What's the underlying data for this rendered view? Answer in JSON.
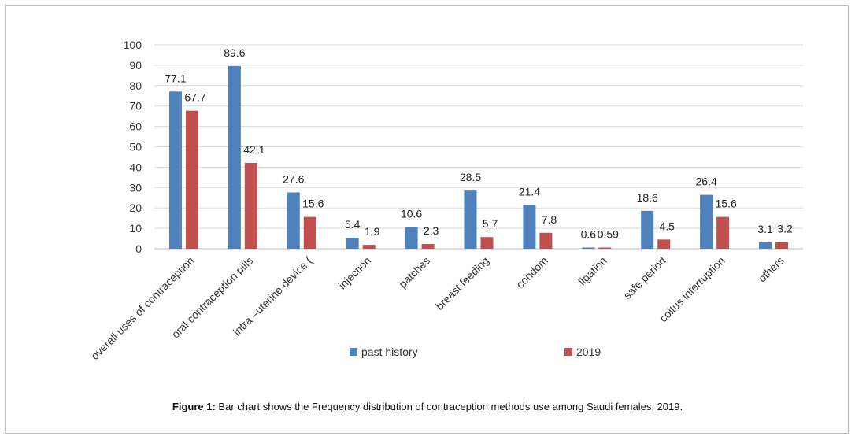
{
  "chart_data": {
    "type": "bar",
    "categories": [
      "overall uses of contraception",
      "oral contraception pills",
      "intra –uterine device (",
      "injection",
      "patches",
      "breast feeding",
      "condom",
      "ligation",
      "safe period",
      "coitus interruption",
      "others"
    ],
    "series": [
      {
        "name": "past history",
        "color": "#4f81bd",
        "values": [
          77.1,
          89.6,
          27.6,
          5.4,
          10.6,
          28.5,
          21.4,
          0.6,
          18.6,
          26.4,
          3.1
        ],
        "labels": [
          "77.1",
          "89.6",
          "27.6",
          "5.4",
          "10.6",
          "28.5",
          "21.4",
          "0.6",
          "18.6",
          "26.4",
          "3.1"
        ]
      },
      {
        "name": "2019",
        "color": "#c0504d",
        "values": [
          67.7,
          42.1,
          15.6,
          1.9,
          2.3,
          5.7,
          7.8,
          0.59,
          4.5,
          15.6,
          3.2
        ],
        "labels": [
          "67.7",
          "42.1",
          "15.6",
          "1.9",
          "2.3",
          "5.7",
          "7.8",
          "0.59",
          "4.5",
          "15.6",
          "3.2"
        ]
      }
    ],
    "ylim": [
      0,
      100
    ],
    "yticks": [
      0,
      10,
      20,
      30,
      40,
      50,
      60,
      70,
      80,
      90,
      100
    ],
    "grid": true,
    "legend": "bottom"
  },
  "caption": {
    "label": "Figure 1:",
    "text": " Bar chart shows the Frequency distribution of contraception methods use among Saudi females, 2019."
  }
}
